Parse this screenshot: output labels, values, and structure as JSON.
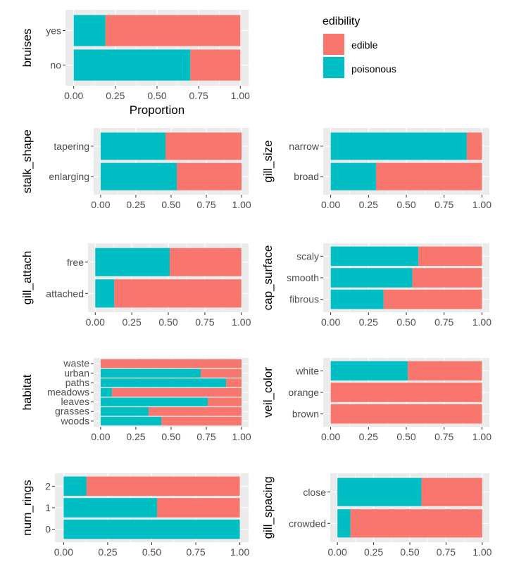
{
  "colors": {
    "edible": "#F8766D",
    "poisonous": "#00BFC4"
  },
  "legend": {
    "title": "edibility",
    "items": [
      {
        "label": "edible",
        "color": "#F8766D"
      },
      {
        "label": "poisonous",
        "color": "#00BFC4"
      }
    ]
  },
  "x_ticks": [
    "0.00",
    "0.25",
    "0.50",
    "0.75",
    "1.00"
  ],
  "chart_data": [
    {
      "type": "bar",
      "orientation": "horizontal",
      "stacked": true,
      "variable": "bruises",
      "categories": [
        "yes",
        "no"
      ],
      "poisonous": [
        0.19,
        0.7
      ],
      "edible": [
        0.81,
        0.3
      ],
      "xlabel": "Proportion",
      "xlim": [
        0,
        1
      ]
    },
    {
      "type": "bar",
      "orientation": "horizontal",
      "stacked": true,
      "variable": "stalk_shape",
      "categories": [
        "tapering",
        "enlarging"
      ],
      "poisonous": [
        0.46,
        0.54
      ],
      "edible": [
        0.54,
        0.46
      ],
      "xlabel": "",
      "xlim": [
        0,
        1
      ]
    },
    {
      "type": "bar",
      "orientation": "horizontal",
      "stacked": true,
      "variable": "gill_size",
      "categories": [
        "narrow",
        "broad"
      ],
      "poisonous": [
        0.9,
        0.3
      ],
      "edible": [
        0.1,
        0.7
      ],
      "xlabel": "",
      "xlim": [
        0,
        1
      ]
    },
    {
      "type": "bar",
      "orientation": "horizontal",
      "stacked": true,
      "variable": "gill_attach",
      "categories": [
        "free",
        "attached"
      ],
      "poisonous": [
        0.51,
        0.13
      ],
      "edible": [
        0.49,
        0.87
      ],
      "xlabel": "",
      "xlim": [
        0,
        1
      ]
    },
    {
      "type": "bar",
      "orientation": "horizontal",
      "stacked": true,
      "variable": "cap_surface",
      "categories": [
        "scaly",
        "smooth",
        "fibrous"
      ],
      "poisonous": [
        0.58,
        0.54,
        0.35
      ],
      "edible": [
        0.42,
        0.46,
        0.65
      ],
      "xlabel": "",
      "xlim": [
        0,
        1
      ]
    },
    {
      "type": "bar",
      "orientation": "horizontal",
      "stacked": true,
      "variable": "habitat",
      "categories": [
        "waste",
        "urban",
        "paths",
        "meadows",
        "leaves",
        "grasses",
        "woods"
      ],
      "poisonous": [
        0.0,
        0.71,
        0.89,
        0.08,
        0.76,
        0.34,
        0.43
      ],
      "edible": [
        1.0,
        0.29,
        0.11,
        0.92,
        0.24,
        0.66,
        0.57
      ],
      "xlabel": "",
      "xlim": [
        0,
        1
      ]
    },
    {
      "type": "bar",
      "orientation": "horizontal",
      "stacked": true,
      "variable": "veil_color",
      "categories": [
        "white",
        "orange",
        "brown"
      ],
      "poisonous": [
        0.51,
        0.0,
        0.0
      ],
      "edible": [
        0.49,
        1.0,
        1.0
      ],
      "xlabel": "",
      "xlim": [
        0,
        1
      ]
    },
    {
      "type": "bar",
      "orientation": "horizontal",
      "stacked": true,
      "variable": "num_rings",
      "categories": [
        "2",
        "1",
        "0"
      ],
      "poisonous": [
        0.13,
        0.53,
        1.0
      ],
      "edible": [
        0.87,
        0.47,
        0.0
      ],
      "xlabel": "",
      "xlim": [
        0,
        1
      ]
    },
    {
      "type": "bar",
      "orientation": "horizontal",
      "stacked": true,
      "variable": "gill_spacing",
      "categories": [
        "close",
        "crowded"
      ],
      "poisonous": [
        0.58,
        0.09
      ],
      "edible": [
        0.42,
        0.91
      ],
      "xlabel": "",
      "xlim": [
        0,
        1
      ]
    }
  ]
}
